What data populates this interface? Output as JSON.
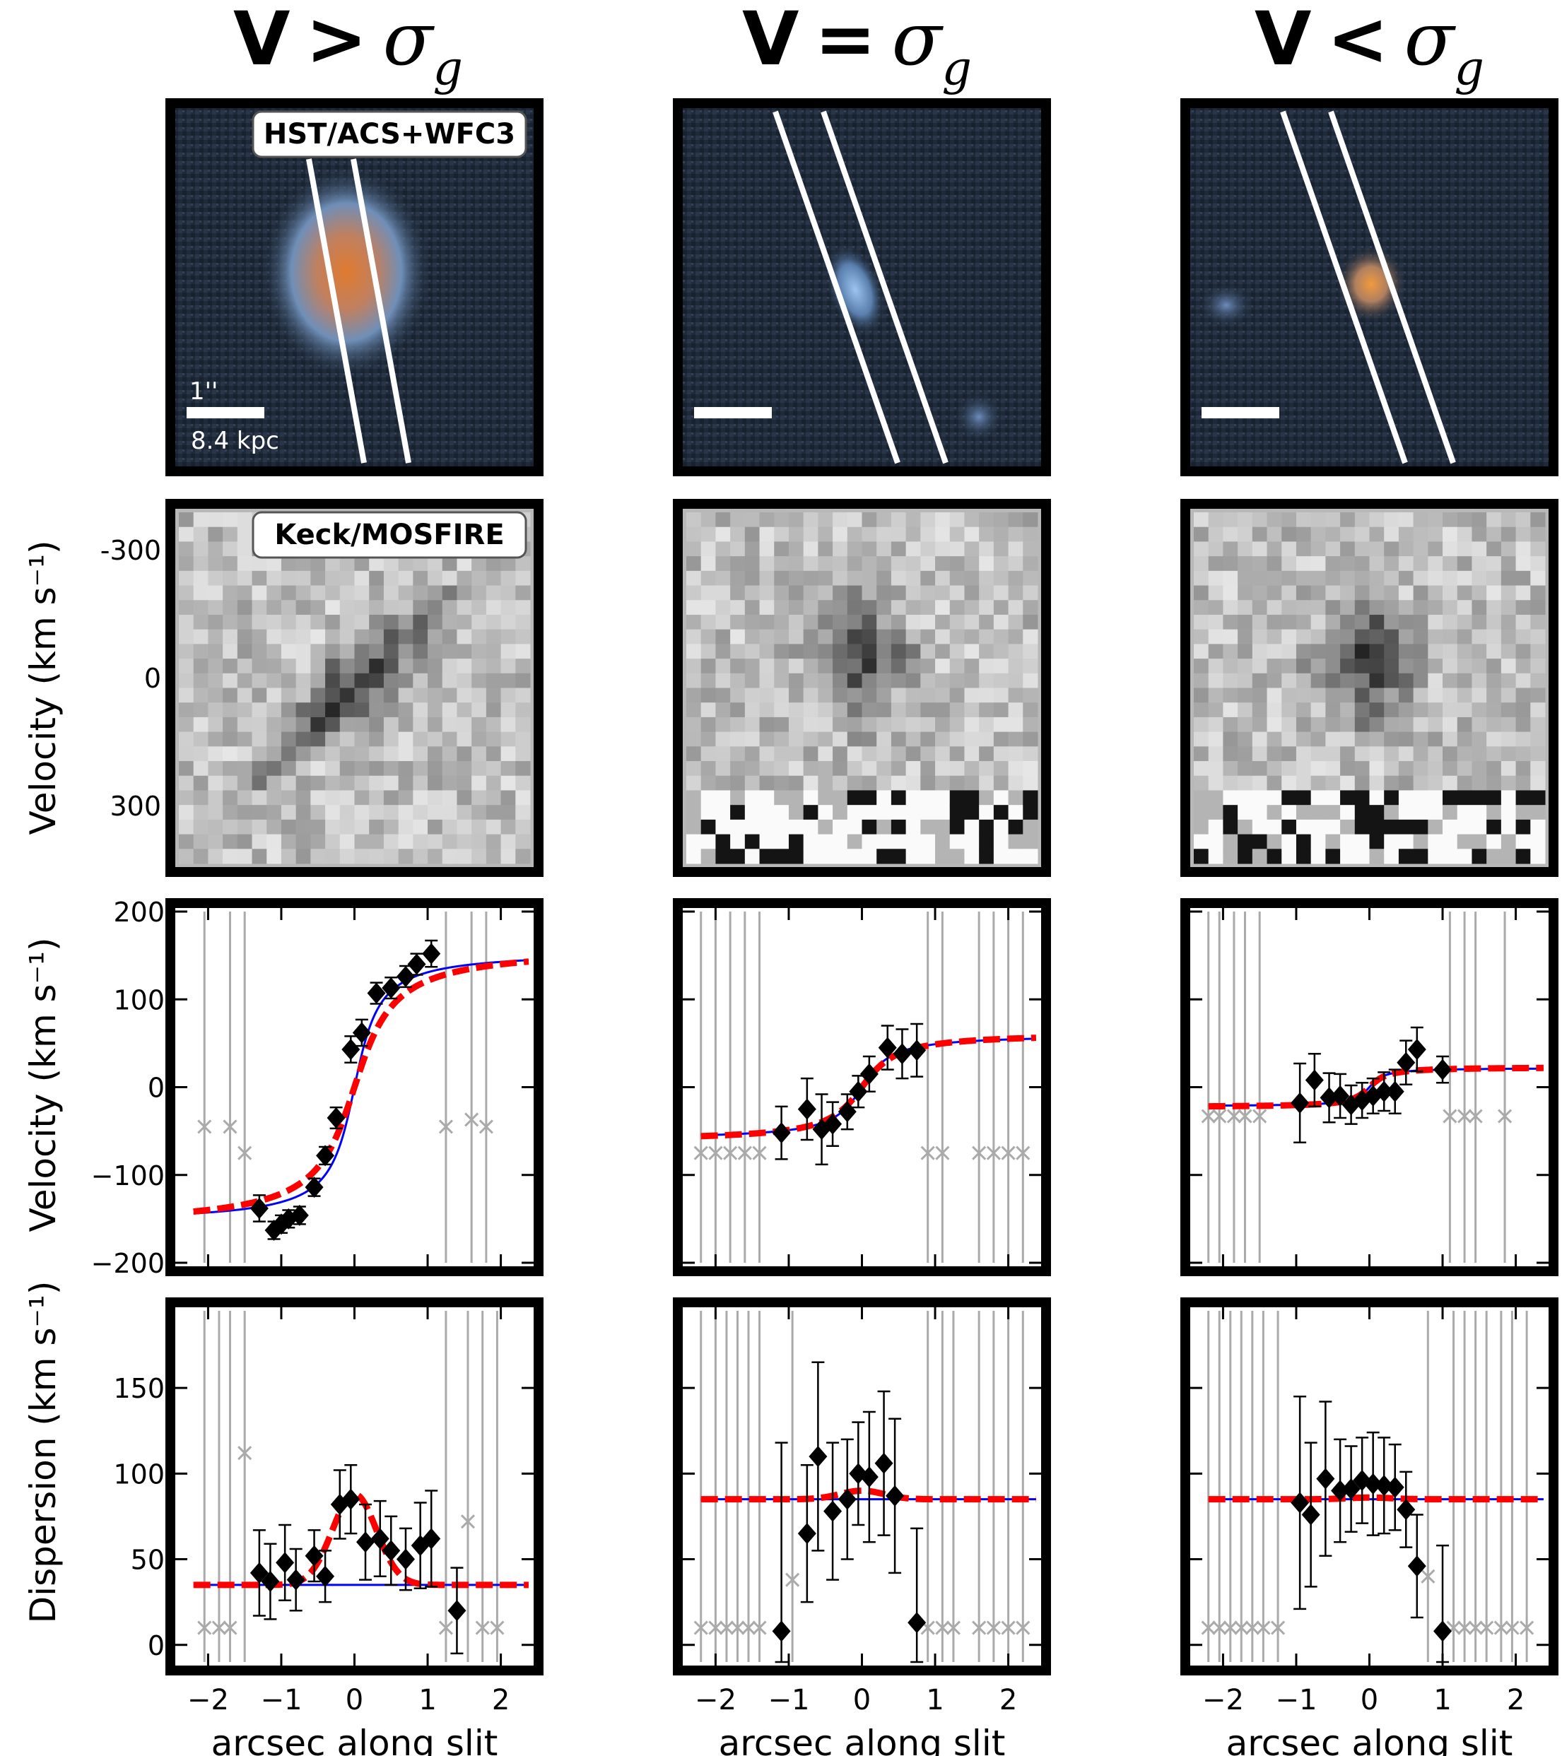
{
  "columns": [
    {
      "title_prefix": "V",
      "title_operator": ">",
      "title_symbol": "σ",
      "title_subscript": "g"
    },
    {
      "title_prefix": "V",
      "title_operator": "=",
      "title_symbol": "σ",
      "title_subscript": "g"
    },
    {
      "title_prefix": "V",
      "title_operator": "<",
      "title_symbol": "σ",
      "title_subscript": "g"
    }
  ],
  "labels": {
    "hst_label": "HST/ACS+WFC3",
    "keck_label": "Keck/MOSFIRE",
    "scale_arcsec": "1''",
    "scale_kpc": "8.4 kpc",
    "row2_ylabel": "Velocity (km s⁻¹)",
    "row3_ylabel": "Velocity (km s⁻¹)",
    "row4_ylabel": "Dispersion (km s⁻¹)",
    "xlabel": "arcsec along slit"
  },
  "colors": {
    "data": "#000000",
    "model_red": "#ff0000",
    "model_blue": "#0000ff",
    "masked": "#aaaaaa"
  },
  "chart_data": [
    {
      "type": "image",
      "panel": "spectrum",
      "ylabel": "Velocity (km s⁻¹)",
      "yticks": [
        -300,
        0,
        300
      ]
    },
    {
      "type": "scatter",
      "panel": "velocity",
      "column": 1,
      "ylabel": "Velocity (km s⁻¹)",
      "xlabel": "",
      "xlim": [
        -2.4,
        2.4
      ],
      "ylim": [
        -200,
        200
      ],
      "xticks": [
        -2,
        -1,
        0,
        1,
        2
      ],
      "yticks": [
        -200,
        -100,
        0,
        100,
        200
      ],
      "points": {
        "x": [
          -1.3,
          -1.1,
          -1.0,
          -0.9,
          -0.75,
          -0.55,
          -0.4,
          -0.25,
          -0.05,
          0.1,
          0.3,
          0.5,
          0.7,
          0.85,
          1.05
        ],
        "y": [
          -138,
          -163,
          -156,
          -150,
          -146,
          -114,
          -78,
          -35,
          43,
          62,
          107,
          113,
          126,
          140,
          152
        ],
        "err": [
          15,
          10,
          10,
          10,
          10,
          10,
          10,
          12,
          15,
          15,
          12,
          12,
          12,
          12,
          15
        ]
      },
      "masked": {
        "x": [
          -2.05,
          -1.7,
          -1.5,
          1.25,
          1.6,
          1.8
        ],
        "y": [
          -45,
          -45,
          -75,
          -45,
          -37,
          -45
        ]
      },
      "model_red": {
        "vmax": 160,
        "r0": 0.4,
        "x0": 0.0
      },
      "model_blue": {
        "vmax": 155,
        "r0": 0.25,
        "x0": 0.0
      }
    },
    {
      "type": "scatter",
      "panel": "dispersion",
      "column": 1,
      "ylabel": "Dispersion (km s⁻¹)",
      "xlabel": "arcsec along slit",
      "xlim": [
        -2.4,
        2.4
      ],
      "ylim": [
        -10,
        195
      ],
      "xticks": [
        -2,
        -1,
        0,
        1,
        2
      ],
      "yticks": [
        0,
        50,
        100,
        150
      ],
      "points": {
        "x": [
          -1.3,
          -1.15,
          -0.95,
          -0.8,
          -0.55,
          -0.4,
          -0.2,
          -0.05,
          0.15,
          0.35,
          0.5,
          0.7,
          0.9,
          1.05,
          1.4
        ],
        "y": [
          42,
          37,
          48,
          38,
          52,
          40,
          82,
          85,
          60,
          62,
          55,
          50,
          58,
          62,
          20
        ],
        "err": [
          25,
          22,
          22,
          18,
          15,
          15,
          20,
          20,
          22,
          22,
          20,
          18,
          25,
          28,
          25
        ]
      },
      "masked": {
        "x": [
          -2.05,
          -1.85,
          -1.7,
          -1.5,
          1.25,
          1.55,
          1.75,
          1.95
        ],
        "y": [
          10,
          10,
          10,
          112,
          10,
          72,
          10,
          10
        ]
      },
      "model_red_baseline": 35,
      "model_red_peak": 88,
      "model_red_sigma": 0.3,
      "model_blue_level": 35
    },
    {
      "type": "scatter",
      "panel": "velocity",
      "column": 2,
      "ylabel": "",
      "xlabel": "",
      "xlim": [
        -2.4,
        2.4
      ],
      "ylim": [
        -200,
        200
      ],
      "xticks": [
        -2,
        -1,
        0,
        1,
        2
      ],
      "yticks": [
        -200,
        -100,
        0,
        100,
        200
      ],
      "points": {
        "x": [
          -1.1,
          -0.75,
          -0.55,
          -0.4,
          -0.2,
          -0.05,
          0.1,
          0.35,
          0.55,
          0.75
        ],
        "y": [
          -52,
          -25,
          -48,
          -42,
          -28,
          -5,
          15,
          45,
          38,
          42
        ],
        "err": [
          30,
          35,
          40,
          25,
          20,
          18,
          20,
          25,
          28,
          30
        ]
      },
      "masked": {
        "x": [
          -2.2,
          -2.0,
          -1.8,
          -1.6,
          -1.4,
          0.9,
          1.1,
          1.6,
          1.8,
          2.0,
          2.2
        ],
        "y": [
          -75,
          -75,
          -75,
          -75,
          -75,
          -75,
          -75,
          -75,
          -75,
          -75,
          -75
        ]
      },
      "model_red": {
        "vmax": 62,
        "r0": 0.35,
        "x0": 0.0
      },
      "model_blue": {
        "vmax": 60,
        "r0": 0.3,
        "x0": 0.0
      }
    },
    {
      "type": "scatter",
      "panel": "dispersion",
      "column": 2,
      "ylabel": "",
      "xlabel": "arcsec along slit",
      "xlim": [
        -2.4,
        2.4
      ],
      "ylim": [
        -10,
        195
      ],
      "xticks": [
        -2,
        -1,
        0,
        1,
        2
      ],
      "yticks": [
        0,
        50,
        100,
        150
      ],
      "points": {
        "x": [
          -1.1,
          -0.75,
          -0.6,
          -0.4,
          -0.2,
          -0.05,
          0.1,
          0.3,
          0.45,
          0.75
        ],
        "y": [
          8,
          65,
          110,
          78,
          85,
          100,
          98,
          106,
          87,
          13
        ],
        "err": [
          110,
          40,
          55,
          40,
          35,
          30,
          38,
          42,
          45,
          55
        ]
      },
      "masked": {
        "x": [
          -2.2,
          -2.0,
          -1.85,
          -1.7,
          -1.55,
          -1.4,
          -0.95,
          0.9,
          1.1,
          1.25,
          1.6,
          1.8,
          2.0,
          2.2
        ],
        "y": [
          10,
          10,
          10,
          10,
          10,
          10,
          38,
          10,
          10,
          10,
          10,
          10,
          10,
          10
        ]
      },
      "model_red_baseline": 85,
      "model_red_peak": 90,
      "model_red_sigma": 0.3,
      "model_blue_level": 85
    },
    {
      "type": "scatter",
      "panel": "velocity",
      "column": 3,
      "ylabel": "",
      "xlabel": "",
      "xlim": [
        -2.4,
        2.4
      ],
      "ylim": [
        -200,
        200
      ],
      "xticks": [
        -2,
        -1,
        0,
        1,
        2
      ],
      "yticks": [
        -200,
        -100,
        0,
        100,
        200
      ],
      "points": {
        "x": [
          -0.95,
          -0.75,
          -0.55,
          -0.4,
          -0.25,
          -0.1,
          0.05,
          0.2,
          0.35,
          0.5,
          0.65,
          1.0
        ],
        "y": [
          -18,
          8,
          -12,
          -10,
          -20,
          -15,
          -10,
          -5,
          -5,
          28,
          43,
          20
        ],
        "err": [
          45,
          30,
          28,
          25,
          22,
          20,
          20,
          22,
          25,
          25,
          25,
          15
        ]
      },
      "masked": {
        "x": [
          -2.2,
          -2.05,
          -1.85,
          -1.7,
          -1.5,
          1.1,
          1.3,
          1.45,
          1.85
        ],
        "y": [
          -33,
          -33,
          -33,
          -33,
          -33,
          -33,
          -33,
          -33,
          -33
        ]
      },
      "model_red": {
        "vmax": 23,
        "vmin": -23,
        "r0": 0.18,
        "x0": 0.0
      },
      "model_blue": {
        "vmax": 22,
        "vmin": -22,
        "r0": 0.15,
        "x0": 0.0
      }
    },
    {
      "type": "scatter",
      "panel": "dispersion",
      "column": 3,
      "ylabel": "",
      "xlabel": "arcsec along slit",
      "xlim": [
        -2.4,
        2.4
      ],
      "ylim": [
        -10,
        195
      ],
      "xticks": [
        -2,
        -1,
        0,
        1,
        2
      ],
      "yticks": [
        0,
        50,
        100,
        150
      ],
      "points": {
        "x": [
          -0.95,
          -0.8,
          -0.6,
          -0.4,
          -0.25,
          -0.1,
          0.05,
          0.2,
          0.35,
          0.5,
          0.65,
          1.0
        ],
        "y": [
          83,
          76,
          97,
          90,
          91,
          96,
          94,
          93,
          92,
          79,
          46,
          8
        ],
        "err": [
          62,
          42,
          45,
          30,
          25,
          25,
          30,
          28,
          25,
          22,
          30,
          50
        ]
      },
      "masked": {
        "x": [
          -2.2,
          -2.05,
          -1.9,
          -1.75,
          -1.6,
          -1.45,
          -1.25,
          0.8,
          1.15,
          1.3,
          1.45,
          1.6,
          1.8,
          1.95,
          2.15
        ],
        "y": [
          10,
          10,
          10,
          10,
          10,
          10,
          10,
          40,
          10,
          10,
          10,
          10,
          10,
          10,
          10
        ]
      },
      "model_red_baseline": 85,
      "model_red_peak": 86,
      "model_red_sigma": 0.3,
      "model_blue_level": 85
    }
  ]
}
